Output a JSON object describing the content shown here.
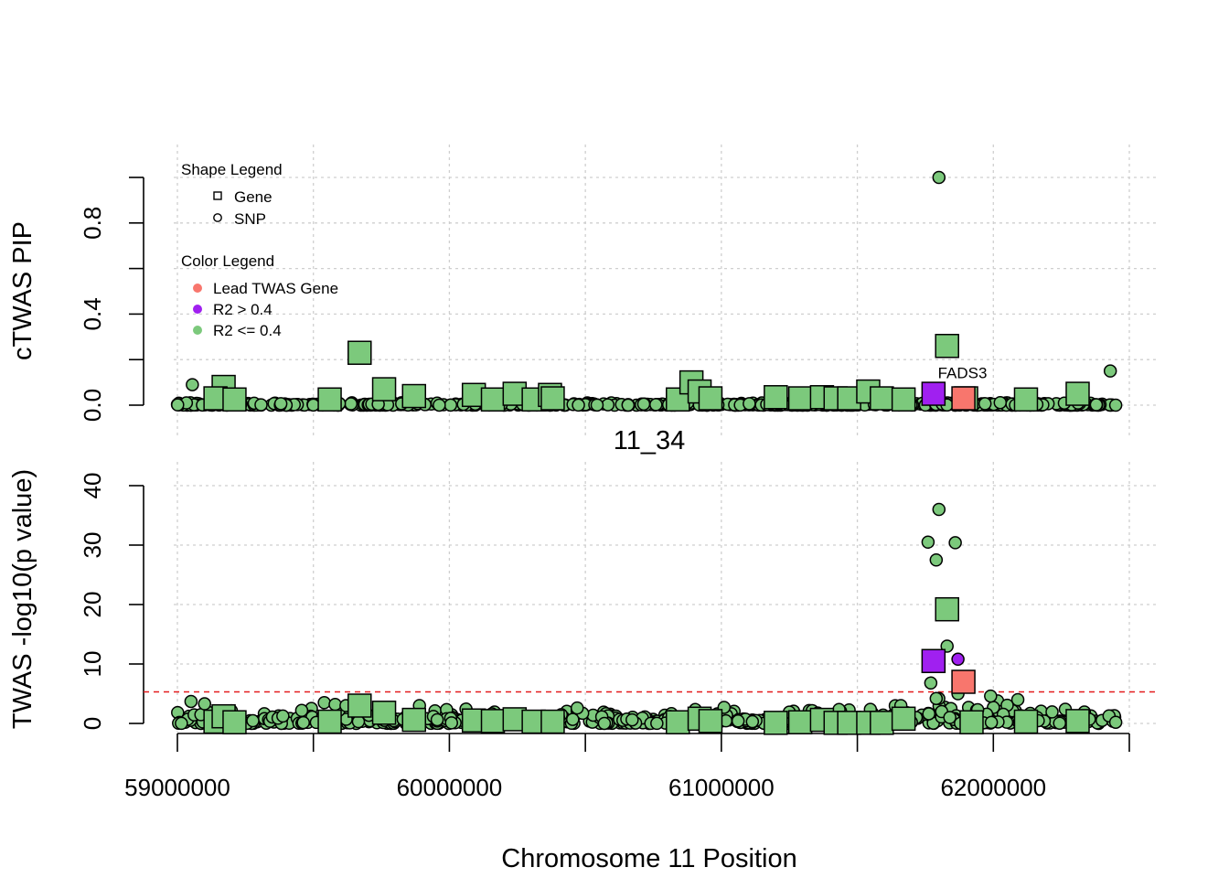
{
  "colors": {
    "lead": "#F8766D",
    "high_r2": "#A020F0",
    "low_r2": "#7CC97C",
    "threshold": "#E41A1C"
  },
  "chart_data": [
    {
      "type": "scatter",
      "panel": "pip",
      "ylabel": "cTWAS PIP",
      "xlim": [
        59000000,
        62500000
      ],
      "ylim": [
        0,
        1
      ],
      "yticks": [
        0,
        0.2,
        0.4,
        0.6,
        0.8,
        1.0
      ],
      "yticklabels": [
        "0.0",
        "0.4",
        "0.8"
      ],
      "yticklabel_values": [
        0,
        0.4,
        0.8
      ],
      "xgrid": [
        59000000,
        59500000,
        60000000,
        60500000,
        61000000,
        61500000,
        62000000,
        62500000
      ],
      "legend": {
        "shape_title": "Shape Legend",
        "shape_items": [
          {
            "label": "Gene",
            "shape": "square"
          },
          {
            "label": "SNP",
            "shape": "circle"
          }
        ],
        "color_title": "Color Legend",
        "color_items": [
          {
            "label": "Lead TWAS Gene",
            "color": "lead"
          },
          {
            "label": "R2 > 0.4",
            "color": "high_r2"
          },
          {
            "label": "R2 <= 0.4",
            "color": "low_r2"
          }
        ]
      },
      "annotations": [
        {
          "text": "FADS3",
          "x": 61890000,
          "y": 0.13
        }
      ],
      "genes": [
        {
          "x": 59170000,
          "y": 0.08,
          "c": "low_r2"
        },
        {
          "x": 59140000,
          "y": 0.03,
          "c": "low_r2"
        },
        {
          "x": 59210000,
          "y": 0.025,
          "c": "low_r2"
        },
        {
          "x": 59560000,
          "y": 0.025,
          "c": "low_r2"
        },
        {
          "x": 59670000,
          "y": 0.23,
          "c": "low_r2"
        },
        {
          "x": 59760000,
          "y": 0.07,
          "c": "low_r2"
        },
        {
          "x": 59870000,
          "y": 0.04,
          "c": "low_r2"
        },
        {
          "x": 60090000,
          "y": 0.045,
          "c": "low_r2"
        },
        {
          "x": 60160000,
          "y": 0.025,
          "c": "low_r2"
        },
        {
          "x": 60240000,
          "y": 0.05,
          "c": "low_r2"
        },
        {
          "x": 60310000,
          "y": 0.025,
          "c": "low_r2"
        },
        {
          "x": 60370000,
          "y": 0.045,
          "c": "low_r2"
        },
        {
          "x": 60380000,
          "y": 0.03,
          "c": "low_r2"
        },
        {
          "x": 60840000,
          "y": 0.025,
          "c": "low_r2"
        },
        {
          "x": 60890000,
          "y": 0.1,
          "c": "low_r2"
        },
        {
          "x": 60920000,
          "y": 0.06,
          "c": "low_r2"
        },
        {
          "x": 60960000,
          "y": 0.03,
          "c": "low_r2"
        },
        {
          "x": 61200000,
          "y": 0.035,
          "c": "low_r2"
        },
        {
          "x": 61290000,
          "y": 0.03,
          "c": "low_r2"
        },
        {
          "x": 61370000,
          "y": 0.035,
          "c": "low_r2"
        },
        {
          "x": 61420000,
          "y": 0.03,
          "c": "low_r2"
        },
        {
          "x": 61470000,
          "y": 0.03,
          "c": "low_r2"
        },
        {
          "x": 61540000,
          "y": 0.06,
          "c": "low_r2"
        },
        {
          "x": 61590000,
          "y": 0.03,
          "c": "low_r2"
        },
        {
          "x": 61670000,
          "y": 0.025,
          "c": "low_r2"
        },
        {
          "x": 61830000,
          "y": 0.26,
          "c": "low_r2"
        },
        {
          "x": 61900000,
          "y": 0.03,
          "c": "low_r2"
        },
        {
          "x": 62120000,
          "y": 0.025,
          "c": "low_r2"
        },
        {
          "x": 62310000,
          "y": 0.05,
          "c": "low_r2"
        },
        {
          "x": 61780000,
          "y": 0.05,
          "c": "high_r2"
        },
        {
          "x": 61890000,
          "y": 0.03,
          "c": "lead"
        }
      ],
      "snps": [
        {
          "x": 59055000,
          "y": 0.09,
          "c": "low_r2"
        },
        {
          "x": 61800000,
          "y": 1.0,
          "c": "low_r2"
        },
        {
          "x": 62430000,
          "y": 0.15,
          "c": "low_r2"
        },
        {
          "x": 62450000,
          "y": 0.0,
          "c": "low_r2"
        }
      ]
    },
    {
      "type": "scatter",
      "panel": "twas",
      "title": "11_34",
      "ylabel": "TWAS -log10(p value)",
      "xlabel": "Chromosome 11 Position",
      "xlim": [
        59000000,
        62500000
      ],
      "ylim": [
        0,
        40
      ],
      "yticks": [
        0,
        10,
        20,
        30,
        40
      ],
      "yticklabels": [
        "0",
        "10",
        "20",
        "30",
        "40"
      ],
      "xticks": [
        59000000,
        59500000,
        60000000,
        60500000,
        61000000,
        61500000,
        62000000,
        62500000
      ],
      "xticklabels": [
        "59000000",
        "60000000",
        "61000000",
        "62000000"
      ],
      "xticklabel_values": [
        59000000,
        60000000,
        61000000,
        62000000
      ],
      "threshold": 5.3,
      "genes": [
        {
          "x": 59140000,
          "y": 0.3,
          "c": "low_r2"
        },
        {
          "x": 59170000,
          "y": 1.2,
          "c": "low_r2"
        },
        {
          "x": 59210000,
          "y": 0.2,
          "c": "low_r2"
        },
        {
          "x": 59560000,
          "y": 0.3,
          "c": "low_r2"
        },
        {
          "x": 59670000,
          "y": 3.0,
          "c": "low_r2"
        },
        {
          "x": 59760000,
          "y": 1.8,
          "c": "low_r2"
        },
        {
          "x": 59870000,
          "y": 0.6,
          "c": "low_r2"
        },
        {
          "x": 60090000,
          "y": 0.5,
          "c": "low_r2"
        },
        {
          "x": 60160000,
          "y": 0.4,
          "c": "low_r2"
        },
        {
          "x": 60240000,
          "y": 0.7,
          "c": "low_r2"
        },
        {
          "x": 60310000,
          "y": 0.3,
          "c": "low_r2"
        },
        {
          "x": 60380000,
          "y": 0.3,
          "c": "low_r2"
        },
        {
          "x": 60840000,
          "y": 0.2,
          "c": "low_r2"
        },
        {
          "x": 60920000,
          "y": 0.8,
          "c": "low_r2"
        },
        {
          "x": 60960000,
          "y": 0.4,
          "c": "low_r2"
        },
        {
          "x": 61200000,
          "y": 0.1,
          "c": "low_r2"
        },
        {
          "x": 61290000,
          "y": 0.2,
          "c": "low_r2"
        },
        {
          "x": 61370000,
          "y": 0.6,
          "c": "low_r2"
        },
        {
          "x": 61420000,
          "y": 0.1,
          "c": "low_r2"
        },
        {
          "x": 61470000,
          "y": 0.1,
          "c": "low_r2"
        },
        {
          "x": 61540000,
          "y": 0.1,
          "c": "low_r2"
        },
        {
          "x": 61590000,
          "y": 0.1,
          "c": "low_r2"
        },
        {
          "x": 61670000,
          "y": 0.8,
          "c": "low_r2"
        },
        {
          "x": 61830000,
          "y": 19.2,
          "c": "low_r2"
        },
        {
          "x": 61920000,
          "y": 0.2,
          "c": "low_r2"
        },
        {
          "x": 62120000,
          "y": 0.3,
          "c": "low_r2"
        },
        {
          "x": 62310000,
          "y": 0.4,
          "c": "low_r2"
        },
        {
          "x": 61780000,
          "y": 10.5,
          "c": "high_r2"
        },
        {
          "x": 61890000,
          "y": 7.0,
          "c": "lead"
        }
      ],
      "snps": [
        {
          "x": 59050000,
          "y": 3.7,
          "c": "low_r2"
        },
        {
          "x": 59100000,
          "y": 3.3,
          "c": "low_r2"
        },
        {
          "x": 59540000,
          "y": 3.5,
          "c": "low_r2"
        },
        {
          "x": 59580000,
          "y": 3.2,
          "c": "low_r2"
        },
        {
          "x": 59620000,
          "y": 3.0,
          "c": "low_r2"
        },
        {
          "x": 59890000,
          "y": 3.0,
          "c": "low_r2"
        },
        {
          "x": 60470000,
          "y": 2.6,
          "c": "low_r2"
        },
        {
          "x": 61010000,
          "y": 2.7,
          "c": "low_r2"
        },
        {
          "x": 61250000,
          "y": 1.9,
          "c": "low_r2"
        },
        {
          "x": 61660000,
          "y": 3.0,
          "c": "low_r2"
        },
        {
          "x": 61770000,
          "y": 6.8,
          "c": "low_r2"
        },
        {
          "x": 61790000,
          "y": 4.2,
          "c": "low_r2"
        },
        {
          "x": 61760000,
          "y": 30.5,
          "c": "low_r2"
        },
        {
          "x": 61800000,
          "y": 36.0,
          "c": "low_r2"
        },
        {
          "x": 61790000,
          "y": 27.5,
          "c": "low_r2"
        },
        {
          "x": 61860000,
          "y": 30.4,
          "c": "low_r2"
        },
        {
          "x": 61830000,
          "y": 13.0,
          "c": "low_r2"
        },
        {
          "x": 61810000,
          "y": 2.0,
          "c": "low_r2"
        },
        {
          "x": 61840000,
          "y": 1.0,
          "c": "low_r2"
        },
        {
          "x": 61870000,
          "y": 5.0,
          "c": "low_r2"
        },
        {
          "x": 61990000,
          "y": 4.6,
          "c": "low_r2"
        },
        {
          "x": 62090000,
          "y": 4.0,
          "c": "low_r2"
        },
        {
          "x": 62450000,
          "y": 0.2,
          "c": "low_r2"
        },
        {
          "x": 61870000,
          "y": 10.8,
          "c": "high_r2"
        }
      ]
    }
  ]
}
